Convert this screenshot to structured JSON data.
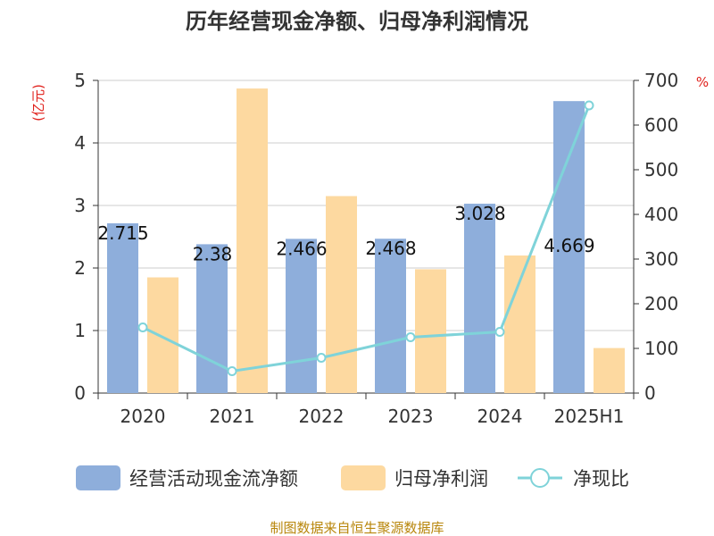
{
  "chart_data": {
    "type": "bar",
    "title": "历年经营现金净额、归母净利润情况",
    "categories": [
      "2020",
      "2021",
      "2022",
      "2023",
      "2024",
      "2025H1"
    ],
    "left_axis": {
      "unit": "(亿元)",
      "ylim": [
        0,
        5
      ],
      "ticks": [
        "0",
        "1",
        "2",
        "3",
        "4",
        "5"
      ]
    },
    "right_axis": {
      "unit": "%",
      "ylim": [
        0,
        700
      ],
      "ticks": [
        "0",
        "100",
        "200",
        "300",
        "400",
        "500",
        "600",
        "700"
      ]
    },
    "grid": true,
    "legend_position": "bottom",
    "series": [
      {
        "name": "经营活动现金流净额",
        "kind": "bar",
        "axis": "left",
        "color": "#8eaedb",
        "values": [
          2.715,
          2.38,
          2.466,
          2.468,
          3.028,
          4.669
        ],
        "labels": [
          "2.715",
          "2.38",
          "2.466",
          "2.468",
          "3.028",
          "4.669"
        ]
      },
      {
        "name": "归母净利润",
        "kind": "bar",
        "axis": "left",
        "color": "#fdd9a0",
        "values": [
          1.85,
          4.87,
          3.15,
          1.98,
          2.2,
          0.72
        ]
      },
      {
        "name": "净现比",
        "kind": "line",
        "axis": "right",
        "color": "#7fd3d9",
        "values": [
          147,
          49,
          79,
          125,
          137,
          644
        ]
      }
    ]
  },
  "source": "制图数据来自恒生聚源数据库"
}
